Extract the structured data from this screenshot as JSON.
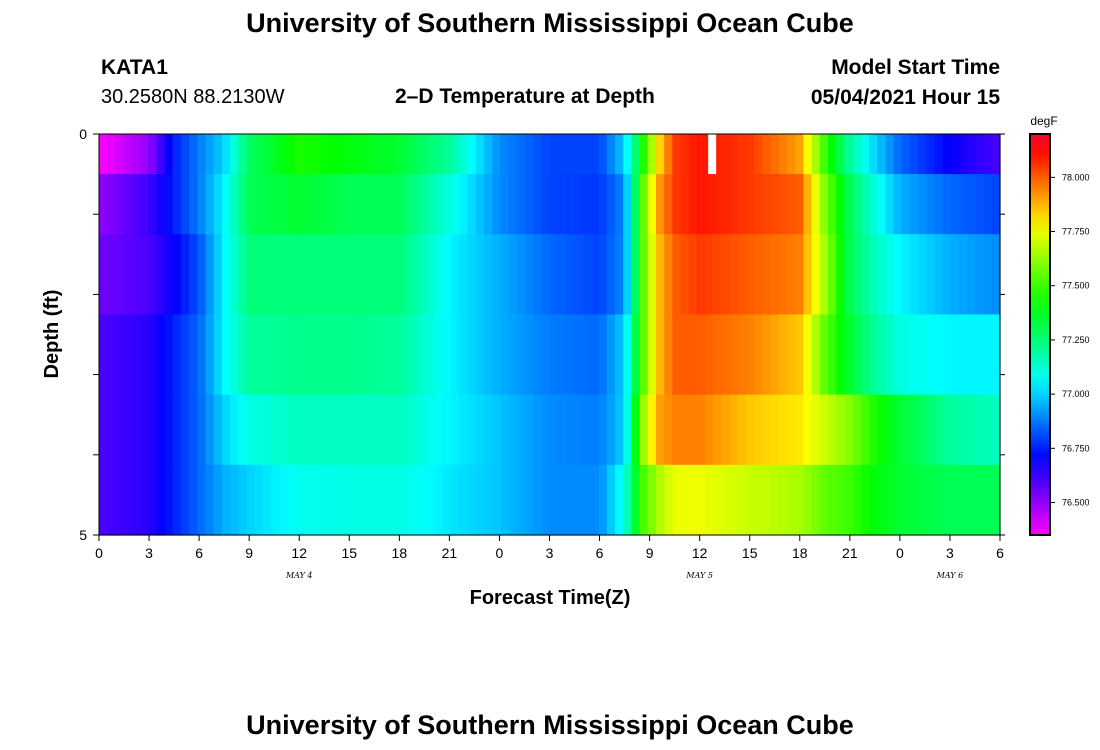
{
  "header": {
    "title": "University of Southern Mississippi Ocean Cube",
    "station_id": "KATA1",
    "coordinates": "30.2580N  88.2130W",
    "plot_title": "2–D Temperature at Depth",
    "model_start_label": "Model Start Time",
    "model_start_value": "05/04/2021 Hour 15"
  },
  "footer": {
    "title": "University of Southern Mississippi Ocean Cube"
  },
  "chart_data": {
    "type": "heatmap",
    "xlabel": "Forecast Time(Z)",
    "ylabel": "Depth (ft)",
    "x_ticks": [
      "0",
      "3",
      "6",
      "9",
      "12",
      "15",
      "18",
      "21",
      "0",
      "3",
      "6",
      "9",
      "12",
      "15",
      "18",
      "21",
      "0",
      "3",
      "6"
    ],
    "x_range_hours": [
      0,
      54
    ],
    "date_labels": [
      {
        "label": "MAY 4",
        "hour": 12
      },
      {
        "label": "MAY 5",
        "hour": 36
      },
      {
        "label": "MAY 6",
        "hour": 51
      }
    ],
    "y_ticks": [
      "0",
      "5"
    ],
    "y_range": [
      0,
      5
    ],
    "colorbar": {
      "unit": "degF",
      "min": 76.35,
      "max": 78.2,
      "ticks": [
        "78.000",
        "77.750",
        "77.500",
        "77.250",
        "77.000",
        "76.750",
        "76.500"
      ],
      "tick_values": [
        78.0,
        77.75,
        77.5,
        77.25,
        77.0,
        76.75,
        76.5
      ]
    },
    "depth_levels": [
      0.25,
      0.75,
      1.75,
      2.75,
      3.75,
      4.5
    ],
    "keyframe_hours": [
      0,
      3,
      4.5,
      6,
      7.5,
      9,
      12,
      15,
      18,
      21,
      24,
      27,
      30,
      31.5,
      32.5,
      33.5,
      34.5,
      36,
      39,
      42,
      43.5,
      45,
      46.5,
      48,
      51,
      54
    ],
    "temperature_degF": [
      [
        76.35,
        76.5,
        76.75,
        76.88,
        77.0,
        77.28,
        77.45,
        77.4,
        77.35,
        77.2,
        76.9,
        76.8,
        76.8,
        77.0,
        77.4,
        77.8,
        78.05,
        78.1,
        78.05,
        77.9,
        77.5,
        77.2,
        77.0,
        76.85,
        76.7,
        76.6
      ],
      [
        76.5,
        76.62,
        76.75,
        76.88,
        77.05,
        77.3,
        77.35,
        77.3,
        77.3,
        77.1,
        76.9,
        76.8,
        76.78,
        76.9,
        77.5,
        77.9,
        78.05,
        78.1,
        78.05,
        78.0,
        77.6,
        77.3,
        77.1,
        76.95,
        76.85,
        76.8
      ],
      [
        76.55,
        76.6,
        76.7,
        76.82,
        77.05,
        77.25,
        77.25,
        77.25,
        77.25,
        77.05,
        76.95,
        76.85,
        76.8,
        76.9,
        77.5,
        77.85,
        78.0,
        78.05,
        78.0,
        77.95,
        77.65,
        77.3,
        77.15,
        77.05,
        76.95,
        76.9
      ],
      [
        76.6,
        76.65,
        76.75,
        76.85,
        77.05,
        77.2,
        77.22,
        77.22,
        77.2,
        77.05,
        76.95,
        76.88,
        76.85,
        77.0,
        77.5,
        77.85,
        78.0,
        78.0,
        77.95,
        77.85,
        77.55,
        77.35,
        77.2,
        77.1,
        77.05,
        77.05
      ],
      [
        76.6,
        76.65,
        76.75,
        76.85,
        77.0,
        77.1,
        77.15,
        77.15,
        77.15,
        77.05,
        76.98,
        76.9,
        76.88,
        77.0,
        77.6,
        77.9,
        77.95,
        77.95,
        77.85,
        77.8,
        77.7,
        77.6,
        77.45,
        77.35,
        77.2,
        77.15
      ],
      [
        76.6,
        76.65,
        76.75,
        76.85,
        76.95,
        77.0,
        77.08,
        77.1,
        77.1,
        77.03,
        76.98,
        76.9,
        76.9,
        77.1,
        77.5,
        77.65,
        77.75,
        77.75,
        77.7,
        77.65,
        77.55,
        77.5,
        77.4,
        77.35,
        77.3,
        77.3
      ]
    ],
    "missing_cells": [
      {
        "hour": 36.75,
        "depth_row": 0
      }
    ],
    "grid": false
  }
}
